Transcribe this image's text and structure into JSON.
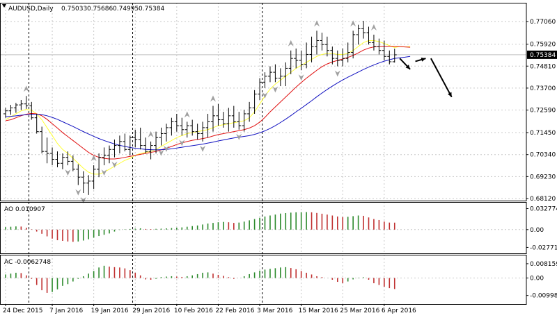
{
  "header": {
    "symbol": "AUDUSD,Daily",
    "open": "0.75033",
    "high": "0.75686",
    "low": "0.74995",
    "close": "0.75384"
  },
  "colors": {
    "background": "#ffffff",
    "axis": "#000000",
    "grid": "#c8c8c8",
    "ma_fast": "#ffff33",
    "ma_mid": "#e01010",
    "ma_slow": "#1010c0",
    "fractal": "#a0a0a0",
    "bar_up": "#2c8a2c",
    "bar_down": "#c03030",
    "forecast_arrow": "#000000"
  },
  "chart_data": [
    {
      "type": "ohlc",
      "title": "AUDUSD,Daily",
      "x": [
        "24 Dec 2015",
        "28 Dec 2015",
        "29 Dec 2015",
        "30 Dec 2015",
        "31 Dec 2015",
        "1 Jan 2016",
        "4 Jan 2016",
        "5 Jan 2016",
        "6 Jan 2016",
        "7 Jan 2016",
        "8 Jan 2016",
        "11 Jan 2016",
        "12 Jan 2016",
        "13 Jan 2016",
        "14 Jan 2016",
        "15 Jan 2016",
        "18 Jan 2016",
        "19 Jan 2016",
        "20 Jan 2016",
        "21 Jan 2016",
        "22 Jan 2016",
        "25 Jan 2016",
        "26 Jan 2016",
        "27 Jan 2016",
        "28 Jan 2016",
        "29 Jan 2016",
        "1 Feb 2016",
        "2 Feb 2016",
        "3 Feb 2016",
        "4 Feb 2016",
        "5 Feb 2016",
        "8 Feb 2016",
        "9 Feb 2016",
        "10 Feb 2016",
        "11 Feb 2016",
        "12 Feb 2016",
        "15 Feb 2016",
        "16 Feb 2016",
        "17 Feb 2016",
        "18 Feb 2016",
        "19 Feb 2016",
        "22 Feb 2016",
        "23 Feb 2016",
        "24 Feb 2016",
        "25 Feb 2016",
        "26 Feb 2016",
        "29 Feb 2016",
        "1 Mar 2016",
        "2 Mar 2016",
        "3 Mar 2016",
        "4 Mar 2016",
        "7 Mar 2016",
        "8 Mar 2016",
        "9 Mar 2016",
        "10 Mar 2016",
        "11 Mar 2016",
        "14 Mar 2016",
        "15 Mar 2016",
        "16 Mar 2016",
        "17 Mar 2016",
        "18 Mar 2016",
        "21 Mar 2016",
        "22 Mar 2016",
        "23 Mar 2016",
        "24 Mar 2016",
        "25 Mar 2016",
        "28 Mar 2016",
        "29 Mar 2016",
        "30 Mar 2016",
        "31 Mar 2016",
        "1 Apr 2016",
        "4 Apr 2016",
        "5 Apr 2016",
        "6 Apr 2016",
        "7 Apr 2016",
        "8 Apr 2016"
      ],
      "open": [
        0.724,
        0.7255,
        0.727,
        0.7285,
        0.729,
        0.728,
        0.722,
        0.715,
        0.705,
        0.704,
        0.701,
        0.699,
        0.702,
        0.7,
        0.696,
        0.692,
        0.689,
        0.69,
        0.696,
        0.702,
        0.703,
        0.706,
        0.708,
        0.71,
        0.706,
        0.712,
        0.711,
        0.708,
        0.705,
        0.708,
        0.712,
        0.714,
        0.717,
        0.72,
        0.718,
        0.716,
        0.718,
        0.715,
        0.714,
        0.717,
        0.72,
        0.723,
        0.721,
        0.719,
        0.723,
        0.72,
        0.718,
        0.724,
        0.727,
        0.734,
        0.74,
        0.743,
        0.745,
        0.742,
        0.743,
        0.747,
        0.752,
        0.751,
        0.749,
        0.754,
        0.758,
        0.761,
        0.759,
        0.756,
        0.752,
        0.751,
        0.752,
        0.755,
        0.764,
        0.767,
        0.765,
        0.76,
        0.758,
        0.756,
        0.753,
        0.7503
      ],
      "high": [
        0.727,
        0.7285,
        0.7295,
        0.731,
        0.733,
        0.73,
        0.724,
        0.7175,
        0.712,
        0.707,
        0.705,
        0.704,
        0.705,
        0.703,
        0.6985,
        0.695,
        0.693,
        0.698,
        0.704,
        0.707,
        0.708,
        0.711,
        0.713,
        0.714,
        0.713,
        0.716,
        0.717,
        0.712,
        0.71,
        0.715,
        0.717,
        0.719,
        0.722,
        0.724,
        0.722,
        0.72,
        0.721,
        0.719,
        0.72,
        0.724,
        0.728,
        0.729,
        0.725,
        0.727,
        0.728,
        0.725,
        0.726,
        0.73,
        0.736,
        0.742,
        0.745,
        0.748,
        0.749,
        0.747,
        0.75,
        0.756,
        0.757,
        0.756,
        0.76,
        0.763,
        0.766,
        0.765,
        0.763,
        0.758,
        0.756,
        0.757,
        0.76,
        0.766,
        0.769,
        0.771,
        0.768,
        0.764,
        0.762,
        0.761,
        0.756,
        0.7569
      ],
      "low": [
        0.722,
        0.7235,
        0.7245,
        0.726,
        0.7265,
        0.721,
        0.714,
        0.704,
        0.699,
        0.698,
        0.697,
        0.696,
        0.698,
        0.695,
        0.688,
        0.684,
        0.683,
        0.686,
        0.692,
        0.698,
        0.699,
        0.702,
        0.704,
        0.705,
        0.703,
        0.707,
        0.706,
        0.704,
        0.701,
        0.704,
        0.708,
        0.71,
        0.713,
        0.715,
        0.713,
        0.712,
        0.713,
        0.711,
        0.71,
        0.712,
        0.715,
        0.718,
        0.717,
        0.715,
        0.717,
        0.716,
        0.715,
        0.72,
        0.724,
        0.731,
        0.737,
        0.74,
        0.74,
        0.738,
        0.738,
        0.744,
        0.747,
        0.746,
        0.747,
        0.75,
        0.754,
        0.756,
        0.753,
        0.749,
        0.748,
        0.748,
        0.75,
        0.752,
        0.759,
        0.762,
        0.759,
        0.756,
        0.754,
        0.751,
        0.749,
        0.7499
      ],
      "close": [
        0.7255,
        0.727,
        0.7285,
        0.729,
        0.728,
        0.722,
        0.715,
        0.705,
        0.704,
        0.701,
        0.699,
        0.702,
        0.7,
        0.696,
        0.692,
        0.689,
        0.69,
        0.696,
        0.702,
        0.703,
        0.706,
        0.708,
        0.71,
        0.706,
        0.712,
        0.711,
        0.708,
        0.705,
        0.708,
        0.712,
        0.714,
        0.717,
        0.72,
        0.718,
        0.716,
        0.718,
        0.715,
        0.714,
        0.717,
        0.72,
        0.723,
        0.721,
        0.719,
        0.723,
        0.72,
        0.718,
        0.724,
        0.727,
        0.734,
        0.74,
        0.743,
        0.745,
        0.742,
        0.743,
        0.747,
        0.752,
        0.751,
        0.749,
        0.754,
        0.758,
        0.761,
        0.759,
        0.756,
        0.752,
        0.751,
        0.752,
        0.755,
        0.764,
        0.767,
        0.765,
        0.76,
        0.758,
        0.756,
        0.753,
        0.7503,
        0.7538
      ],
      "series": [
        {
          "name": "",
          "color": "#ffff33",
          "values": [
            0.721,
            0.7225,
            0.724,
            0.7255,
            0.7262,
            0.7258,
            0.724,
            0.721,
            0.717,
            0.713,
            0.709,
            0.706,
            0.704,
            0.7015,
            0.699,
            0.6965,
            0.6945,
            0.6935,
            0.6935,
            0.6945,
            0.696,
            0.6975,
            0.699,
            0.7005,
            0.7015,
            0.703,
            0.704,
            0.7045,
            0.705,
            0.706,
            0.7075,
            0.709,
            0.7105,
            0.712,
            0.713,
            0.714,
            0.7145,
            0.715,
            0.7155,
            0.716,
            0.717,
            0.718,
            0.7185,
            0.719,
            0.7195,
            0.72,
            0.7205,
            0.722,
            0.725,
            0.729,
            0.733,
            0.7365,
            0.739,
            0.741,
            0.743,
            0.745,
            0.747,
            0.7485,
            0.75,
            0.7515,
            0.753,
            0.754,
            0.7545,
            0.7545,
            0.754,
            0.754,
            0.7545,
            0.756,
            0.758,
            0.76,
            0.761,
            0.761,
            0.7605,
            0.7595,
            0.7585,
            0.7575
          ]
        },
        {
          "name": "",
          "color": "#e01010",
          "values": [
            0.7205,
            0.721,
            0.722,
            0.723,
            0.7238,
            0.7242,
            0.724,
            0.723,
            0.7212,
            0.719,
            0.7168,
            0.7145,
            0.7125,
            0.7105,
            0.7085,
            0.7065,
            0.7045,
            0.703,
            0.702,
            0.7015,
            0.7012,
            0.7012,
            0.7015,
            0.702,
            0.7025,
            0.703,
            0.7035,
            0.704,
            0.7045,
            0.705,
            0.7058,
            0.7066,
            0.7075,
            0.7085,
            0.7093,
            0.71,
            0.7106,
            0.711,
            0.7115,
            0.712,
            0.7128,
            0.7135,
            0.714,
            0.7145,
            0.715,
            0.7155,
            0.716,
            0.7168,
            0.718,
            0.7198,
            0.7222,
            0.725,
            0.7275,
            0.73,
            0.7325,
            0.735,
            0.7375,
            0.7398,
            0.742,
            0.744,
            0.746,
            0.7478,
            0.7492,
            0.7502,
            0.751,
            0.7517,
            0.7525,
            0.7535,
            0.7548,
            0.7562,
            0.7572,
            0.7578,
            0.7581,
            0.7582,
            0.7582,
            0.7581
          ]
        },
        {
          "name": "",
          "color": "#1010c0",
          "values": [
            0.7225,
            0.7227,
            0.723,
            0.7233,
            0.7236,
            0.7238,
            0.7238,
            0.7236,
            0.723,
            0.7222,
            0.7212,
            0.72,
            0.7188,
            0.7176,
            0.7163,
            0.715,
            0.7138,
            0.7126,
            0.7115,
            0.7105,
            0.7096,
            0.7088,
            0.7081,
            0.7075,
            0.707,
            0.7066,
            0.7063,
            0.706,
            0.7059,
            0.7058,
            0.7059,
            0.706,
            0.7063,
            0.7067,
            0.7071,
            0.7075,
            0.7079,
            0.7083,
            0.7087,
            0.7092,
            0.7097,
            0.7103,
            0.7108,
            0.7113,
            0.7118,
            0.7122,
            0.7126,
            0.713,
            0.7136,
            0.7144,
            0.7154,
            0.7166,
            0.718,
            0.7196,
            0.7213,
            0.7231,
            0.725,
            0.7268,
            0.7287,
            0.7306,
            0.7326,
            0.7345,
            0.7363,
            0.738,
            0.7396,
            0.7411,
            0.7425,
            0.7438,
            0.7451,
            0.7464,
            0.7476,
            0.7487,
            0.7497,
            0.7506,
            0.7513,
            0.752
          ]
        }
      ],
      "ma_extension": {
        "fast": [
          0.758,
          0.7578,
          0.758
        ],
        "mid": [
          0.758,
          0.7578,
          0.7576
        ],
        "slow": [
          0.7523,
          0.7526,
          0.753
        ]
      },
      "fractals_up_index": [
        4,
        17,
        28,
        35,
        40,
        55,
        60,
        67,
        71
      ],
      "fractals_down_index": [
        12,
        14,
        15,
        19,
        21,
        30,
        31,
        34,
        38,
        45,
        50,
        52,
        57,
        64
      ],
      "y_ticks": [
        "0.77060",
        "0.75920",
        "0.74810",
        "0.73700",
        "0.72590",
        "0.71450",
        "0.70340",
        "0.69230",
        "0.68120"
      ],
      "y_tick_values": [
        0.7706,
        0.7592,
        0.7481,
        0.737,
        0.7259,
        0.7145,
        0.7034,
        0.6923,
        0.6812
      ],
      "ylim": [
        0.6812,
        0.778
      ],
      "x_ticks": [
        "24 Dec 2015",
        "7 Jan 2016",
        "19 Jan 2016",
        "29 Jan 2016",
        "10 Feb 2016",
        "22 Feb 2016",
        "3 Mar 2016",
        "15 Mar 2016",
        "25 Mar 2016",
        "6 Apr 2016"
      ],
      "x_tick_index": [
        0,
        9,
        17,
        25,
        33,
        41,
        49,
        57,
        65,
        73
      ],
      "period_separator_index": [
        5,
        25,
        50
      ],
      "current_price": "0.75384",
      "current_price_value": 0.75384,
      "forecast_arrows": [
        {
          "from_index": 76,
          "from_value": 0.752,
          "to_index": 78,
          "to_value": 0.7465
        },
        {
          "from_index": 79,
          "from_value": 0.7505,
          "to_index": 81,
          "to_value": 0.752
        },
        {
          "from_index": 82,
          "from_value": 0.752,
          "to_index": 86,
          "to_value": 0.7325
        }
      ],
      "grid": true
    },
    {
      "type": "bar",
      "title": "AO 0.010907",
      "indicator": "AO",
      "label_value": "0.010907",
      "y_ticks": [
        "0.032774",
        "0.00",
        "-0.027713"
      ],
      "y_tick_values": [
        0.032774,
        0.0,
        -0.027713
      ],
      "ylim": [
        -0.0305,
        0.0355
      ],
      "values": [
        0.004,
        0.0045,
        0.005,
        0.0048,
        0.003,
        0.0005,
        -0.003,
        -0.0065,
        -0.0105,
        -0.014,
        -0.0165,
        -0.0175,
        -0.0185,
        -0.019,
        -0.0185,
        -0.017,
        -0.015,
        -0.0125,
        -0.01,
        -0.008,
        -0.006,
        -0.003,
        -0.0005,
        0.0005,
        0.001,
        0.0015,
        0.002,
        0.001,
        0.0008,
        0.0012,
        0.0015,
        0.002,
        0.0025,
        0.003,
        0.0035,
        0.0045,
        0.0055,
        0.0065,
        0.008,
        0.0095,
        0.0105,
        0.0115,
        0.012,
        0.0115,
        0.0105,
        0.011,
        0.0125,
        0.0145,
        0.0165,
        0.0185,
        0.0205,
        0.022,
        0.0235,
        0.025,
        0.0258,
        0.0265,
        0.027,
        0.0272,
        0.0274,
        0.027,
        0.026,
        0.0248,
        0.0235,
        0.022,
        0.0205,
        0.0195,
        0.02,
        0.021,
        0.022,
        0.0215,
        0.019,
        0.0165,
        0.015,
        0.0125,
        0.011,
        0.0109
      ]
    },
    {
      "type": "bar",
      "title": "AC -0.0062748",
      "indicator": "AC",
      "label_value": "-0.0062748",
      "y_ticks": [
        "0.0081590",
        "0.00",
        "-0.0099867"
      ],
      "y_tick_values": [
        0.008159,
        0.0,
        -0.0099867
      ],
      "ylim": [
        -0.0125,
        0.0105
      ],
      "values": [
        0.002,
        0.0025,
        0.003,
        0.0028,
        0.0015,
        -0.0005,
        -0.004,
        -0.007,
        -0.0085,
        -0.008,
        -0.0065,
        -0.0045,
        -0.0035,
        -0.002,
        -0.0005,
        0.001,
        0.0025,
        0.004,
        0.006,
        0.007,
        0.0065,
        0.0062,
        0.006,
        0.0055,
        0.0045,
        0.003,
        0.0015,
        -0.0008,
        -0.001,
        -0.0005,
        0.0005,
        0.0008,
        0.001,
        0.0008,
        0.0006,
        0.001,
        0.0015,
        0.0022,
        0.003,
        0.0032,
        0.0025,
        0.0018,
        0.0012,
        0.0005,
        -0.0005,
        0.0,
        0.001,
        0.0022,
        0.0032,
        0.0042,
        0.0048,
        0.0052,
        0.0056,
        0.006,
        0.0062,
        0.0057,
        0.005,
        0.004,
        0.003,
        0.002,
        0.001,
        0.0005,
        0.0,
        -0.001,
        -0.0022,
        -0.003,
        -0.002,
        -0.0008,
        0.0002,
        0.0004,
        -0.001,
        -0.003,
        -0.004,
        -0.005,
        -0.0058,
        -0.0063
      ]
    }
  ]
}
